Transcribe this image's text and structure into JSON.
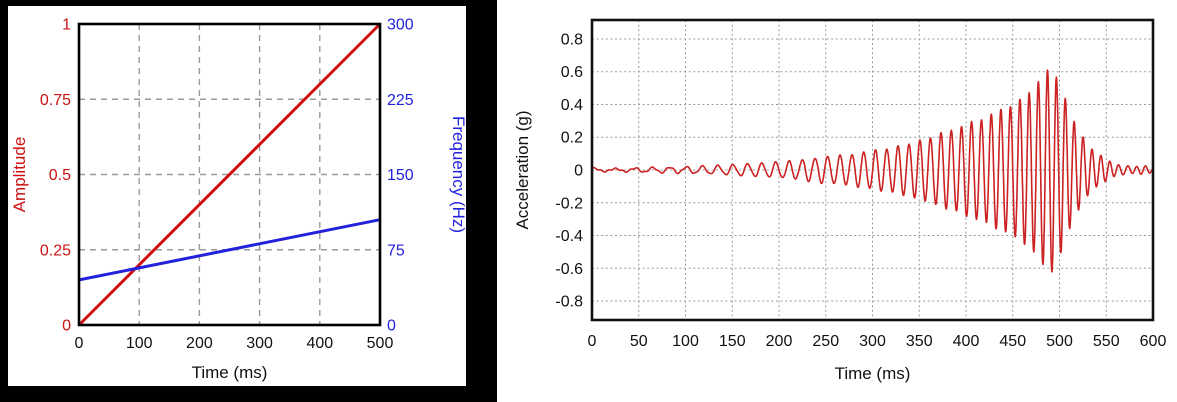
{
  "chart_data": [
    {
      "id": "amplitude-frequency-sweep",
      "type": "line",
      "xlabel": "Time (ms)",
      "x_range": [
        0,
        500
      ],
      "x_ticks": [
        0,
        100,
        200,
        300,
        400,
        500
      ],
      "grid": "dashed",
      "grid_color": "#9a9a9a",
      "frame_color": "#000000",
      "axes": {
        "left": {
          "label": "Amplitude",
          "range": [
            0,
            1
          ],
          "ticks": [
            1,
            0.75,
            0.5,
            0.25,
            0
          ],
          "color": "#cc1111"
        },
        "right": {
          "label": "Frequency (Hz)",
          "range": [
            0,
            300
          ],
          "ticks": [
            300,
            225,
            150,
            75,
            0
          ],
          "color": "#2222dd"
        }
      },
      "series": [
        {
          "name": "Amplitude",
          "axis": "left",
          "color": "#cc1111",
          "x": [
            0,
            500
          ],
          "y": [
            0,
            1
          ]
        },
        {
          "name": "Frequency (Hz)",
          "axis": "right",
          "color": "#2222dd",
          "x": [
            0,
            500
          ],
          "y": [
            45,
            105
          ]
        }
      ]
    },
    {
      "id": "acceleration-chirp",
      "type": "line",
      "xlabel": "Time (ms)",
      "ylabel": "Acceleration (g)",
      "x_range": [
        0,
        600
      ],
      "x_ticks": [
        0,
        50,
        100,
        150,
        200,
        250,
        300,
        350,
        400,
        450,
        500,
        550,
        600
      ],
      "y_ticks": [
        0.8,
        0.6,
        0.4,
        0.2,
        0,
        -0.2,
        -0.4,
        -0.6,
        -0.8
      ],
      "ylim": [
        -0.916,
        0.916
      ],
      "grid": "dotted",
      "grid_color": "#999999",
      "frame_color": "#111111",
      "peak": {
        "time_ms": 490,
        "max_g": 0.61,
        "min_g": -0.65
      },
      "series": [
        {
          "name": "Acceleration (g)",
          "color": "#cc2222",
          "signal": {
            "type": "chirp",
            "freq_start_hz": 45,
            "freq_end_hz": 105,
            "sweep_end_ms": 500,
            "noise_amplitude": 0.007,
            "envelope_keypoints": [
              [
                0,
                0.01
              ],
              [
                60,
                0.012
              ],
              [
                100,
                0.016
              ],
              [
                140,
                0.025
              ],
              [
                180,
                0.04
              ],
              [
                220,
                0.06
              ],
              [
                260,
                0.085
              ],
              [
                300,
                0.115
              ],
              [
                340,
                0.16
              ],
              [
                380,
                0.235
              ],
              [
                420,
                0.32
              ],
              [
                450,
                0.4
              ],
              [
                470,
                0.48
              ],
              [
                485,
                0.6
              ],
              [
                491,
                0.64
              ],
              [
                498,
                0.55
              ],
              [
                505,
                0.45
              ],
              [
                512,
                0.34
              ],
              [
                520,
                0.25
              ],
              [
                530,
                0.16
              ],
              [
                540,
                0.1
              ],
              [
                550,
                0.06
              ],
              [
                562,
                0.035
              ],
              [
                580,
                0.022
              ],
              [
                600,
                0.016
              ]
            ]
          }
        }
      ]
    }
  ]
}
